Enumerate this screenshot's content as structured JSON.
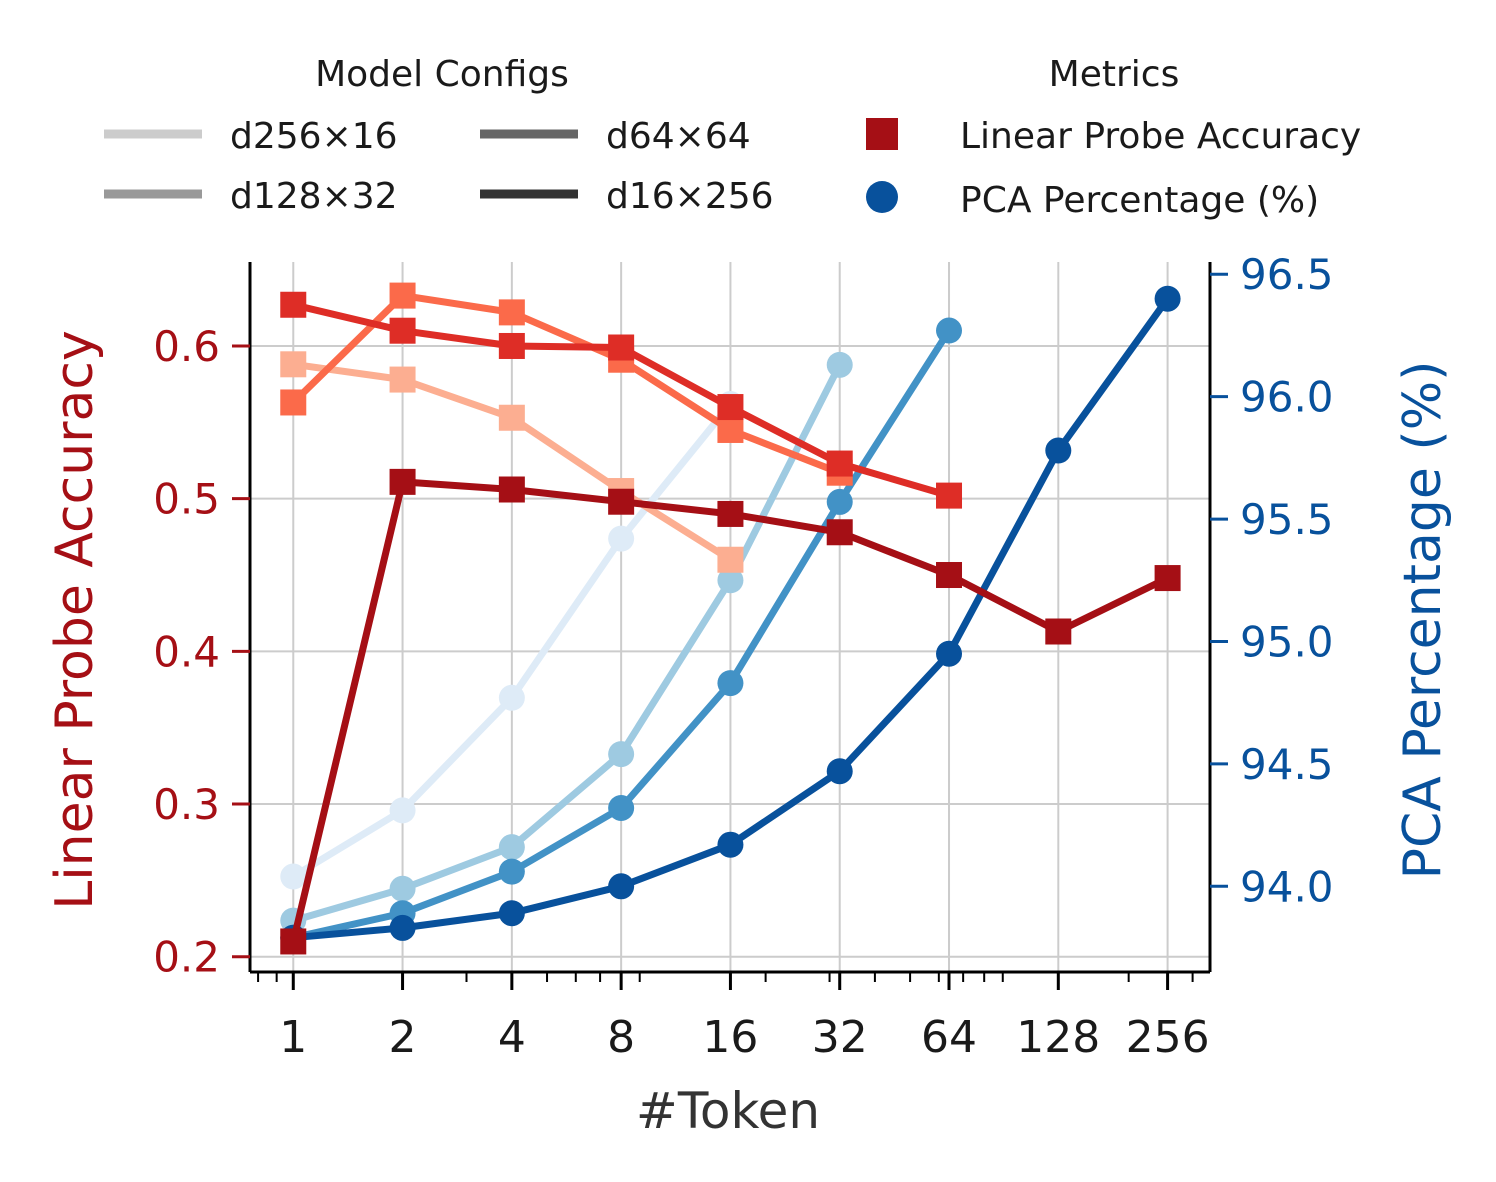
{
  "legend": {
    "configs_title": "Model Configs",
    "metrics_title": "Metrics",
    "configs": [
      {
        "label": "d256×16",
        "color": "#cccccc"
      },
      {
        "label": "d128×32",
        "color": "#999999"
      },
      {
        "label": "d64×64",
        "color": "#666666"
      },
      {
        "label": "d16×256",
        "color": "#333333"
      }
    ],
    "metrics": [
      {
        "label": "Linear Probe Accuracy",
        "marker": "square",
        "color": "#a50f15"
      },
      {
        "label": "PCA Percentage (%)",
        "marker": "circle",
        "color": "#08519c"
      }
    ]
  },
  "chart_data": {
    "type": "line",
    "xlabel": "#Token",
    "ylabel_left": "Linear Probe Accuracy",
    "ylabel_right": "PCA Percentage (%)",
    "x_scale": "log2",
    "x": [
      1,
      2,
      4,
      8,
      16,
      32,
      64,
      128,
      256
    ],
    "x_tick_labels": [
      "1",
      "2",
      "4",
      "8",
      "16",
      "32",
      "64",
      "128",
      "256"
    ],
    "xlim": [
      0.76,
      335
    ],
    "ylim_left": [
      0.19,
      0.655
    ],
    "ylim_right": [
      93.65,
      96.55
    ],
    "yticks_left": [
      0.2,
      0.3,
      0.4,
      0.5,
      0.6
    ],
    "yticks_left_labels": [
      "0.2",
      "0.3",
      "0.4",
      "0.5",
      "0.6"
    ],
    "yticks_right": [
      94.0,
      94.5,
      95.0,
      95.5,
      96.0,
      96.5
    ],
    "yticks_right_labels": [
      "94.0",
      "94.5",
      "95.0",
      "95.5",
      "96.0",
      "96.5"
    ],
    "grid": true,
    "left_color": "#a50f15",
    "right_color": "#08519c",
    "accuracy_series": [
      {
        "name": "d256×16",
        "color": "#fcae91",
        "x": [
          1,
          2,
          4,
          8,
          16
        ],
        "values": [
          0.588,
          0.578,
          0.553,
          0.505,
          0.46
        ]
      },
      {
        "name": "d128×32",
        "color": "#fb6a4a",
        "x": [
          1,
          2,
          4,
          8,
          16,
          32
        ],
        "values": [
          0.563,
          0.633,
          0.622,
          0.591,
          0.545,
          0.517
        ]
      },
      {
        "name": "d64×64",
        "color": "#de2d26",
        "x": [
          1,
          2,
          4,
          8,
          16,
          32,
          64
        ],
        "values": [
          0.627,
          0.61,
          0.6,
          0.599,
          0.56,
          0.523,
          0.502
        ]
      },
      {
        "name": "d16×256",
        "color": "#a50f15",
        "x": [
          1,
          2,
          4,
          8,
          16,
          32,
          64,
          128,
          256
        ],
        "values": [
          0.21,
          0.511,
          0.506,
          0.498,
          0.49,
          0.478,
          0.45,
          0.413,
          0.448
        ]
      }
    ],
    "pca_series": [
      {
        "name": "d256×16",
        "color": "#deebf7",
        "x": [
          1,
          2,
          4,
          8,
          16
        ],
        "values": [
          94.04,
          94.31,
          94.77,
          95.42,
          95.97
        ]
      },
      {
        "name": "d128×32",
        "color": "#9ecae1",
        "x": [
          1,
          2,
          4,
          8,
          16,
          32
        ],
        "values": [
          93.86,
          93.99,
          94.16,
          94.54,
          95.25,
          96.13
        ]
      },
      {
        "name": "d64×64",
        "color": "#4292c6",
        "x": [
          1,
          2,
          4,
          8,
          16,
          32,
          64
        ],
        "values": [
          93.79,
          93.89,
          94.06,
          94.32,
          94.83,
          95.57,
          96.27
        ]
      },
      {
        "name": "d16×256",
        "color": "#08519c",
        "x": [
          1,
          2,
          4,
          8,
          16,
          32,
          64,
          128,
          256
        ],
        "values": [
          93.79,
          93.83,
          93.89,
          94.0,
          94.17,
          94.47,
          94.95,
          95.78,
          96.4
        ]
      }
    ]
  }
}
